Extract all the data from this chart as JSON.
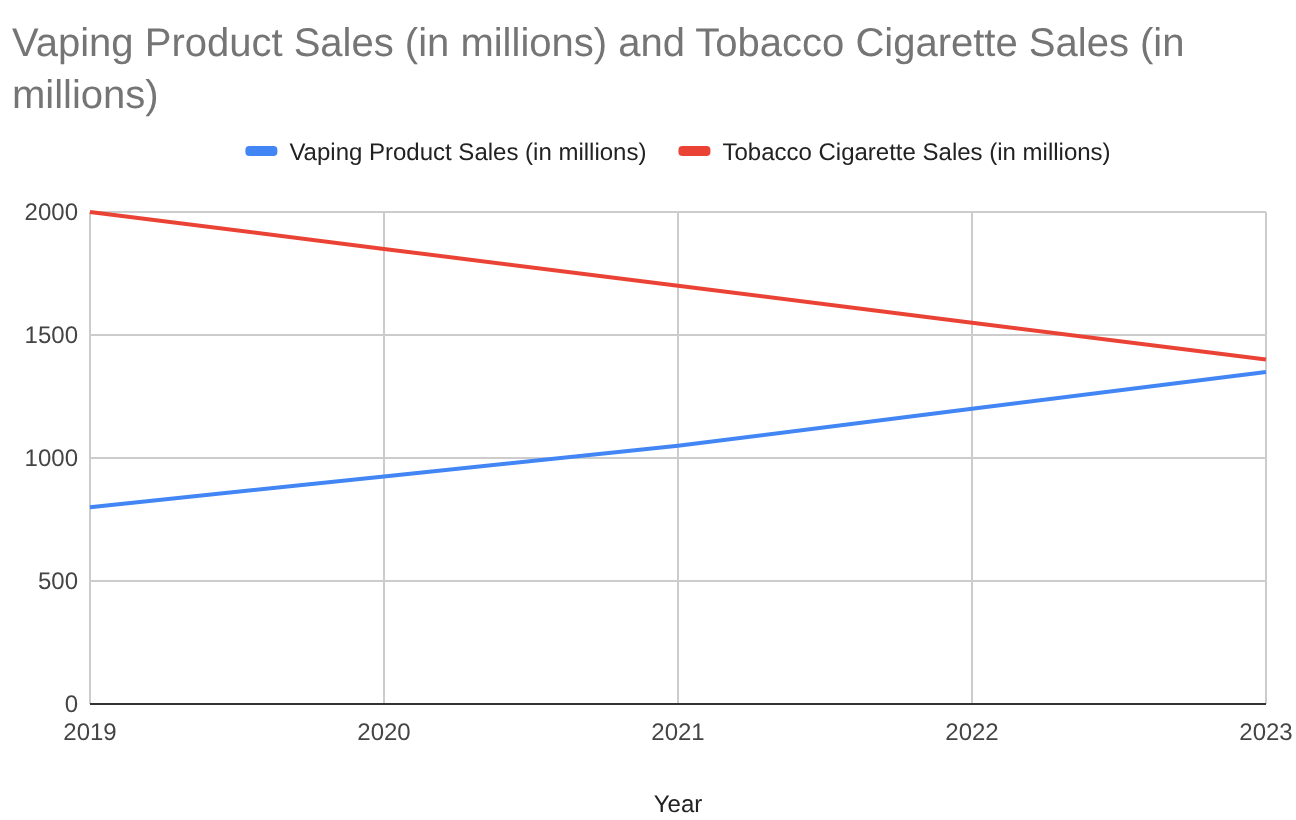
{
  "chart_data": {
    "type": "line",
    "title": "Vaping Product Sales (in millions) and Tobacco Cigarette Sales (in millions)",
    "xlabel": "Year",
    "x": [
      2019,
      2020,
      2021,
      2022,
      2023
    ],
    "series": [
      {
        "name": "Vaping Product Sales (in millions)",
        "color": "#4285f4",
        "values": [
          800,
          925,
          1050,
          1200,
          1350
        ]
      },
      {
        "name": "Tobacco Cigarette Sales (in millions)",
        "color": "#ea4335",
        "values": [
          2000,
          1850,
          1700,
          1550,
          1400
        ]
      }
    ],
    "xlim": [
      2019,
      2023
    ],
    "xticks": [
      2019,
      2020,
      2021,
      2022,
      2023
    ],
    "ylim": [
      0,
      2000
    ],
    "yticks": [
      0,
      500,
      1000,
      1500,
      2000
    ],
    "grid": true,
    "legend": "top",
    "marker": "none",
    "line_style": "solid"
  }
}
